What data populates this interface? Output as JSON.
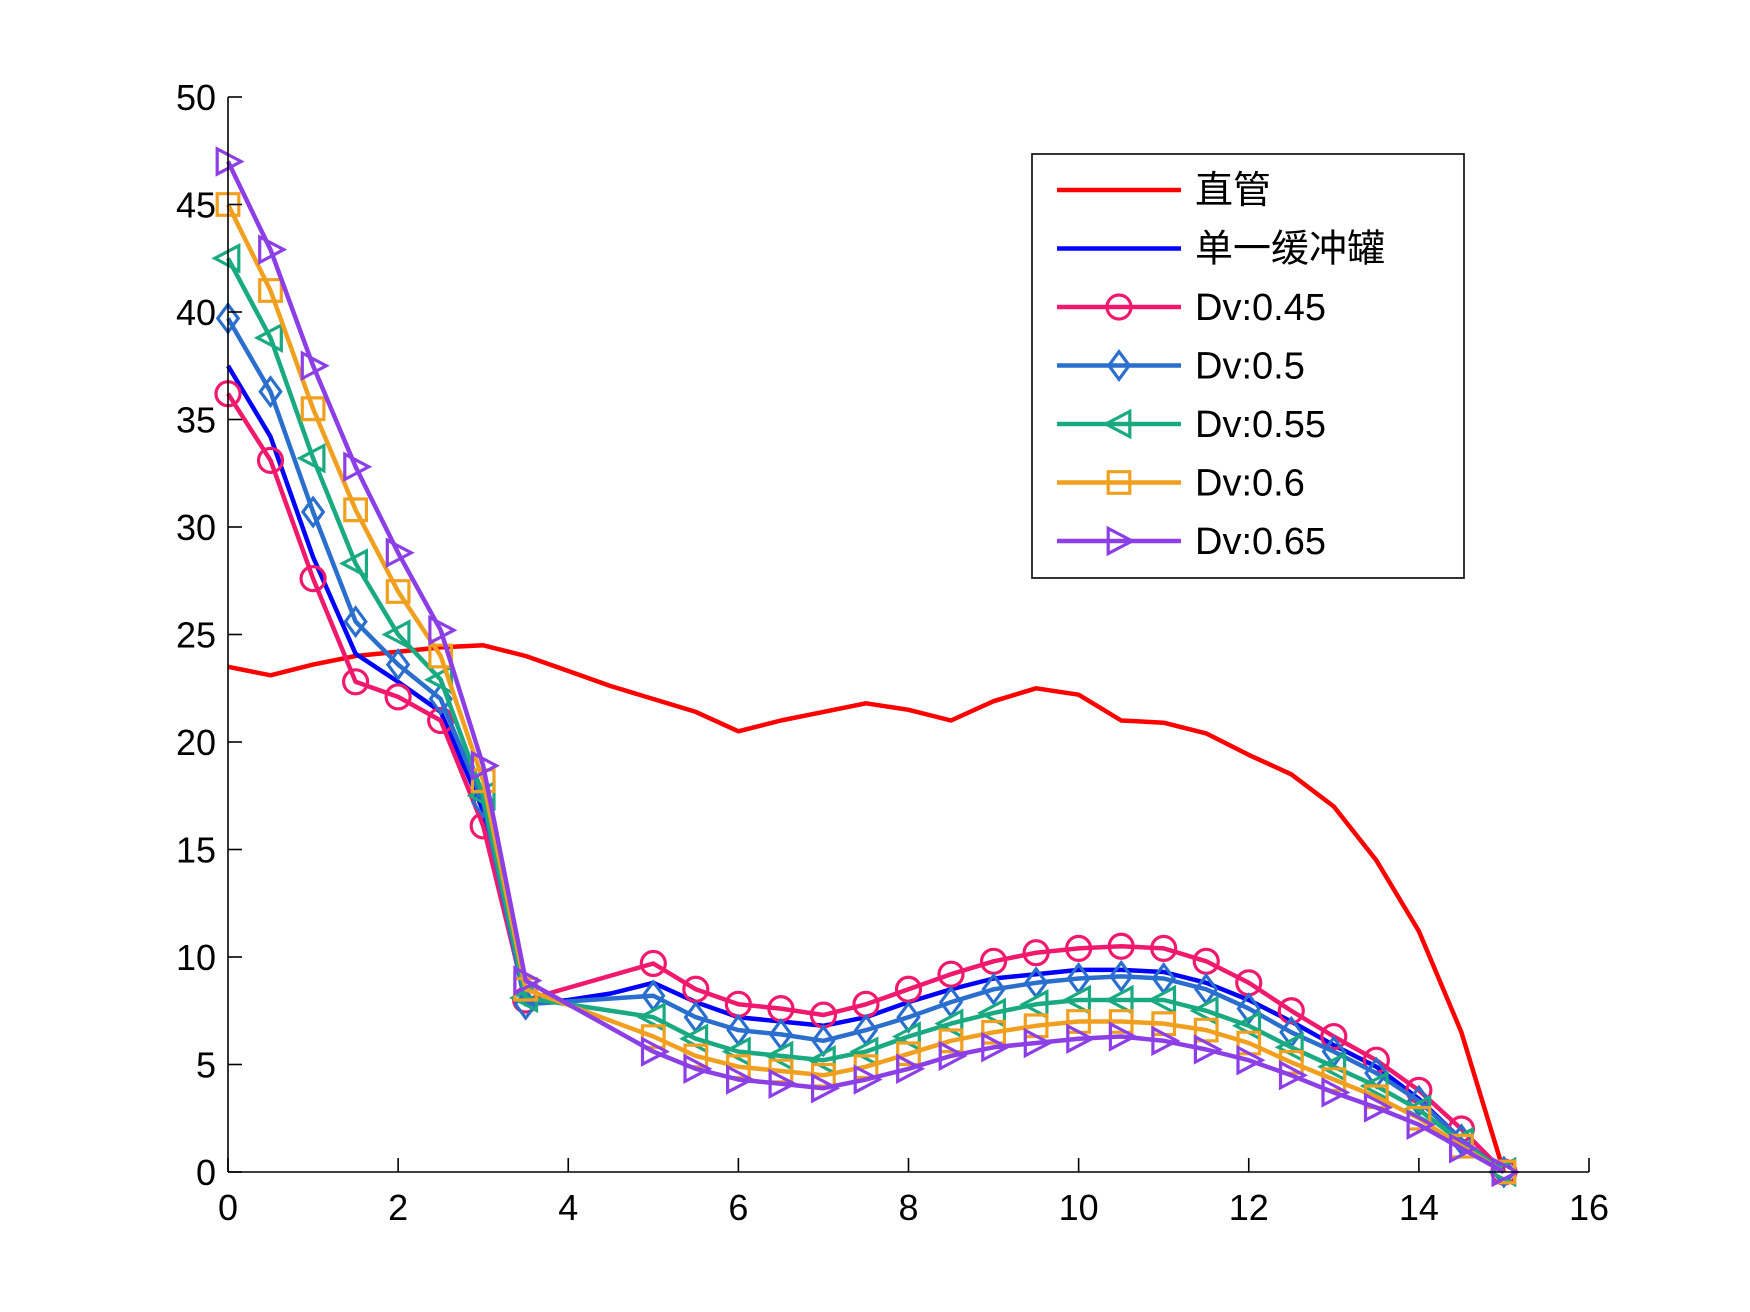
{
  "chart_data": {
    "type": "line",
    "title": "",
    "xlabel": "",
    "ylabel": "",
    "xlim": [
      0,
      16
    ],
    "ylim": [
      0,
      50
    ],
    "xticks": [
      0,
      2,
      4,
      6,
      8,
      10,
      12,
      14,
      16
    ],
    "yticks": [
      0,
      5,
      10,
      15,
      20,
      25,
      30,
      35,
      40,
      45,
      50
    ],
    "grid": false,
    "legend_position": "top-right",
    "series": [
      {
        "name": "直管",
        "color": "#ff0000",
        "marker": "none",
        "x": [
          0,
          0.5,
          1,
          1.5,
          2,
          2.5,
          3,
          3.5,
          4,
          4.5,
          5,
          5.5,
          6,
          6.5,
          7,
          7.5,
          8,
          8.5,
          9,
          9.5,
          10,
          10.5,
          11,
          11.5,
          12,
          12.5,
          13,
          13.5,
          14,
          14.5,
          15
        ],
        "y": [
          23.5,
          23.1,
          23.6,
          24.0,
          24.2,
          24.4,
          24.5,
          24.0,
          23.3,
          22.6,
          22.0,
          21.4,
          20.5,
          21.0,
          21.4,
          21.8,
          21.5,
          21.0,
          21.9,
          22.5,
          22.2,
          21.0,
          20.9,
          20.4,
          19.4,
          18.5,
          17.0,
          14.5,
          11.2,
          6.5,
          0.0
        ]
      },
      {
        "name": "单一缓冲罐",
        "color": "#0000ff",
        "marker": "none",
        "x": [
          0,
          0.5,
          1,
          1.5,
          2,
          2.5,
          3,
          3.5,
          4,
          4.5,
          5,
          5.5,
          6,
          6.5,
          7,
          7.5,
          8,
          8.5,
          9,
          9.5,
          10,
          10.5,
          11,
          11.5,
          12,
          12.5,
          13,
          13.5,
          14,
          14.5,
          15
        ],
        "y": [
          37.5,
          34.2,
          28.6,
          24.1,
          22.8,
          21.4,
          16.8,
          7.8,
          8.0,
          8.3,
          8.8,
          7.9,
          7.2,
          7.0,
          6.8,
          7.2,
          7.9,
          8.5,
          9.0,
          9.2,
          9.4,
          9.4,
          9.3,
          8.8,
          8.0,
          7.0,
          5.9,
          4.9,
          3.4,
          1.5,
          0.0
        ]
      },
      {
        "name": "Dv:0.45",
        "color": "#f0196e",
        "marker": "circle",
        "x": [
          0,
          0.5,
          1,
          1.5,
          2,
          2.5,
          3,
          3.5,
          5,
          5.5,
          6,
          6.5,
          7,
          7.5,
          8,
          8.5,
          9,
          9.5,
          10,
          10.5,
          11,
          11.5,
          12,
          12.5,
          13,
          13.5,
          14,
          14.5,
          15
        ],
        "y": [
          36.2,
          33.1,
          27.6,
          22.8,
          22.1,
          21.0,
          16.1,
          8.0,
          9.7,
          8.5,
          7.8,
          7.6,
          7.3,
          7.8,
          8.5,
          9.2,
          9.8,
          10.2,
          10.4,
          10.5,
          10.4,
          9.8,
          8.8,
          7.5,
          6.3,
          5.2,
          3.8,
          2.0,
          0.0
        ]
      },
      {
        "name": "Dv:0.5",
        "color": "#2b6fce",
        "marker": "diamond",
        "x": [
          0,
          0.5,
          1,
          1.5,
          2,
          2.5,
          3,
          3.5,
          5,
          5.5,
          6,
          6.5,
          7,
          7.5,
          8,
          8.5,
          9,
          9.5,
          10,
          10.5,
          11,
          11.5,
          12,
          12.5,
          13,
          13.5,
          14,
          14.5,
          15
        ],
        "y": [
          39.7,
          36.3,
          30.7,
          25.6,
          23.6,
          22.0,
          17.2,
          7.8,
          8.2,
          7.2,
          6.6,
          6.4,
          6.1,
          6.6,
          7.2,
          7.9,
          8.5,
          8.8,
          9.0,
          9.1,
          9.0,
          8.5,
          7.6,
          6.5,
          5.6,
          4.6,
          3.3,
          1.5,
          0.0
        ]
      },
      {
        "name": "Dv:0.55",
        "color": "#1aaa82",
        "marker": "triangle-left",
        "x": [
          0,
          0.5,
          1,
          1.5,
          2,
          2.5,
          3,
          3.5,
          5,
          5.5,
          6,
          6.5,
          7,
          7.5,
          8,
          8.5,
          9,
          9.5,
          10,
          10.5,
          11,
          11.5,
          12,
          12.5,
          13,
          13.5,
          14,
          14.5,
          15
        ],
        "y": [
          42.5,
          38.8,
          33.2,
          28.3,
          25.0,
          22.9,
          17.5,
          8.1,
          7.2,
          6.2,
          5.6,
          5.4,
          5.2,
          5.6,
          6.3,
          6.9,
          7.4,
          7.8,
          8.0,
          8.0,
          8.0,
          7.5,
          6.8,
          5.8,
          4.9,
          4.0,
          2.9,
          1.4,
          0.0
        ]
      },
      {
        "name": "Dv:0.6",
        "color": "#f0a01e",
        "marker": "square",
        "x": [
          0,
          0.5,
          1,
          1.5,
          2,
          2.5,
          3,
          3.5,
          5,
          5.5,
          6,
          6.5,
          7,
          7.5,
          8,
          8.5,
          9,
          9.5,
          10,
          10.5,
          11,
          11.5,
          12,
          12.5,
          13,
          13.5,
          14,
          14.5,
          15
        ],
        "y": [
          45.0,
          41.0,
          35.5,
          30.8,
          27.0,
          24.0,
          18.2,
          8.5,
          6.3,
          5.4,
          4.9,
          4.7,
          4.5,
          4.9,
          5.5,
          6.1,
          6.5,
          6.8,
          7.0,
          7.0,
          6.9,
          6.6,
          6.0,
          5.1,
          4.3,
          3.5,
          2.5,
          1.2,
          0.0
        ]
      },
      {
        "name": "Dv:0.65",
        "color": "#8c3fe6",
        "marker": "triangle-right",
        "x": [
          0,
          0.5,
          1,
          1.5,
          2,
          2.5,
          3,
          3.5,
          5,
          5.5,
          6,
          6.5,
          7,
          7.5,
          8,
          8.5,
          9,
          9.5,
          10,
          10.5,
          11,
          11.5,
          12,
          12.5,
          13,
          13.5,
          14,
          14.5,
          15
        ],
        "y": [
          47.0,
          42.9,
          37.5,
          32.8,
          28.8,
          25.2,
          18.9,
          8.9,
          5.6,
          4.8,
          4.3,
          4.1,
          3.9,
          4.3,
          4.8,
          5.4,
          5.8,
          6.0,
          6.2,
          6.3,
          6.1,
          5.7,
          5.2,
          4.5,
          3.7,
          3.0,
          2.2,
          1.1,
          0.0
        ]
      }
    ]
  }
}
